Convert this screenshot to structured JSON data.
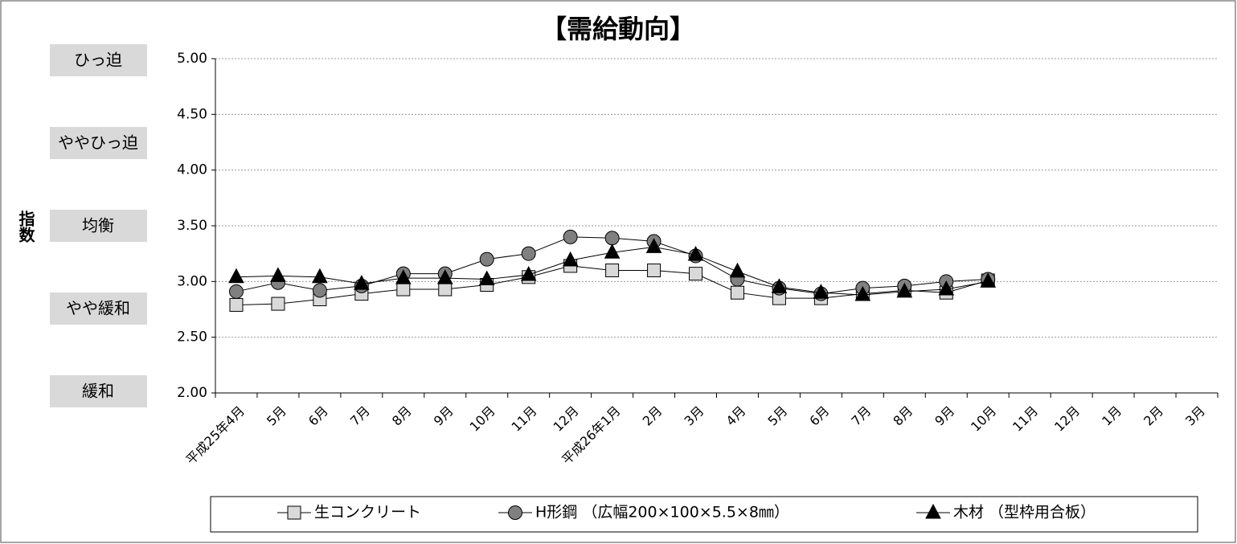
{
  "chart_data": {
    "type": "line",
    "title": "【需給動向】",
    "y_label": "指数",
    "y_bands": [
      "ひっ迫",
      "ややひっ迫",
      "均衡",
      "やや緩和",
      "緩和"
    ],
    "categories": [
      "平成25年4月",
      "5月",
      "6月",
      "7月",
      "8月",
      "9月",
      "10月",
      "11月",
      "12月",
      "平成26年1月",
      "2月",
      "3月",
      "4月",
      "5月",
      "6月",
      "7月",
      "8月",
      "9月",
      "10月",
      "11月",
      "12月",
      "1月",
      "2月",
      "3月"
    ],
    "series": [
      {
        "name": "生コンクリート",
        "color": "#d9d9d9",
        "marker": "square",
        "values": [
          2.79,
          2.8,
          2.84,
          2.89,
          2.93,
          2.93,
          2.97,
          3.04,
          3.14,
          3.1,
          3.1,
          3.07,
          2.9,
          2.85,
          2.85,
          2.89,
          2.92,
          2.9,
          3.01,
          null,
          null,
          null,
          null,
          null
        ]
      },
      {
        "name": "H形鋼 （広幅200×100×5.5×8㎜）",
        "color": "#808080",
        "marker": "circle",
        "values": [
          2.91,
          2.99,
          2.92,
          2.96,
          3.07,
          3.07,
          3.2,
          3.25,
          3.4,
          3.39,
          3.36,
          3.23,
          3.02,
          2.94,
          2.89,
          2.94,
          2.96,
          3.0,
          3.02,
          null,
          null,
          null,
          null,
          null
        ]
      },
      {
        "name": "木材 （型枠用合板）",
        "color": "#000000",
        "marker": "triangle",
        "values": [
          3.04,
          3.05,
          3.04,
          2.98,
          3.03,
          3.03,
          3.02,
          3.06,
          3.19,
          3.26,
          3.31,
          3.24,
          3.09,
          2.95,
          2.9,
          2.88,
          2.91,
          2.93,
          3.0,
          null,
          null,
          null,
          null,
          null
        ]
      }
    ],
    "ylim": [
      2.0,
      5.0
    ],
    "yticks": [
      {
        "value": 2.0,
        "label": "2.00"
      },
      {
        "value": 2.5,
        "label": "2.50"
      },
      {
        "value": 3.0,
        "label": "3.00"
      },
      {
        "value": 3.5,
        "label": "3.50"
      },
      {
        "value": 4.0,
        "label": "4.00"
      },
      {
        "value": 4.5,
        "label": "4.50"
      },
      {
        "value": 5.0,
        "label": "5.00"
      }
    ],
    "grid": true,
    "legend": "bottom"
  }
}
